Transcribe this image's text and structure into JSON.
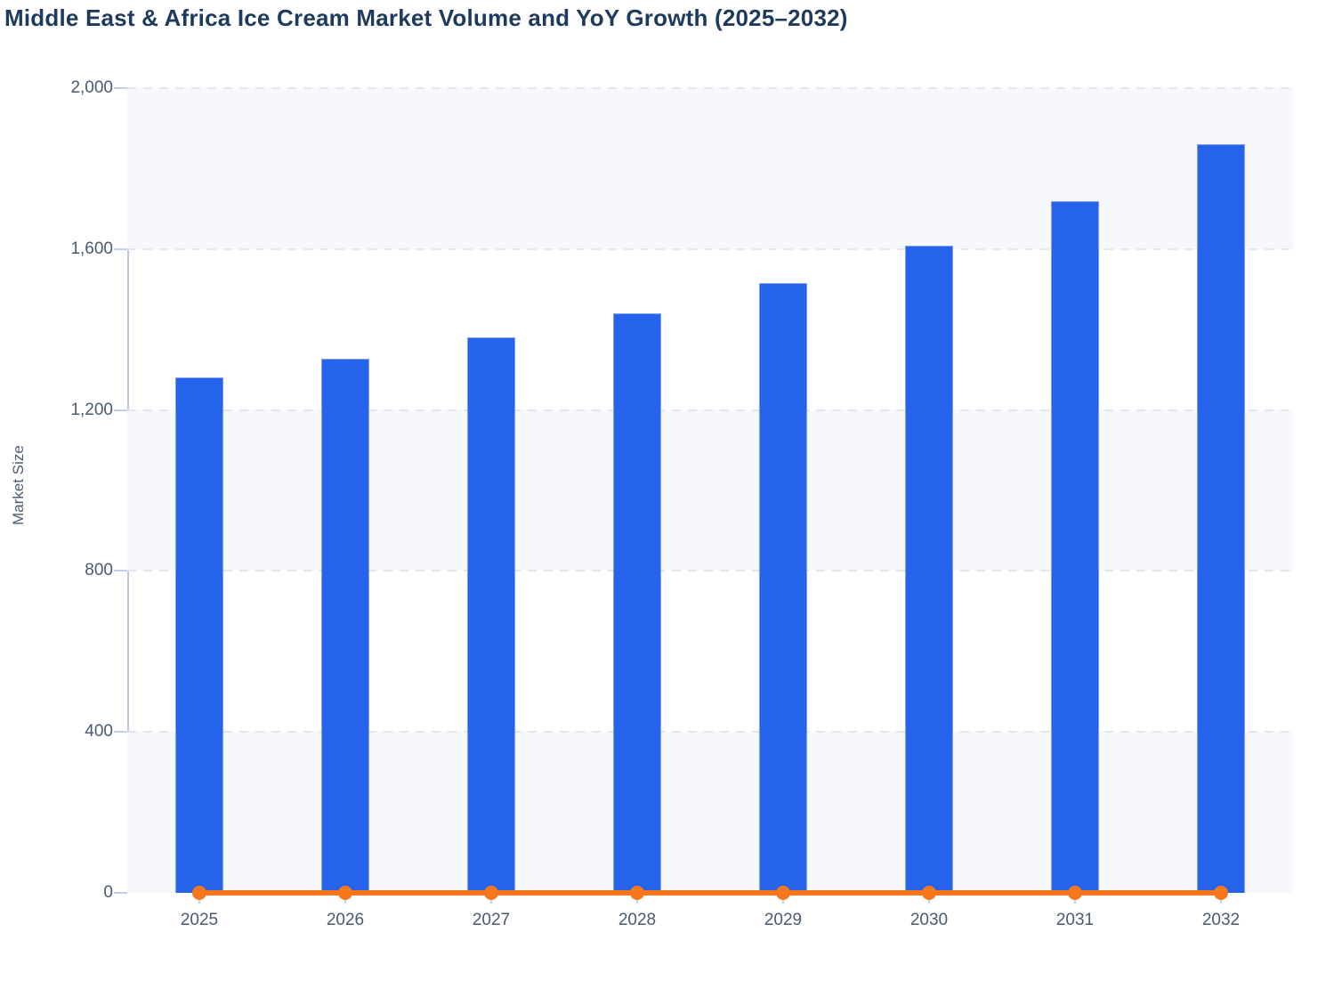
{
  "title": "Middle East & Africa Ice Cream Market Volume and YoY Growth (2025–2032)",
  "y_axis": {
    "label": "Market Size",
    "ticks": [
      "0",
      "400",
      "800",
      "1,200",
      "1,600",
      "2,000"
    ]
  },
  "x_axis": {
    "categories": [
      "2025",
      "2026",
      "2027",
      "2028",
      "2029",
      "2030",
      "2031",
      "2032"
    ]
  },
  "colors": {
    "bar_fill": "#2563eb",
    "bar_border": "#7f9ef0",
    "line": "#f8761c",
    "title_text": "#1e3a5e",
    "axis_text": "#4a5a72",
    "gridline": "#e3e6ee",
    "plot_band": "#f6f8fb",
    "axis_line": "#bcc9e4"
  },
  "chart_data": {
    "type": "bar",
    "title": "Middle East & Africa Ice Cream Market Volume and YoY Growth (2025–2032)",
    "categories": [
      "2025",
      "2026",
      "2027",
      "2028",
      "2029",
      "2030",
      "2031",
      "2032"
    ],
    "series": [
      {
        "name": "Market Size",
        "type": "bar",
        "color": "#2563eb",
        "values": [
          1280,
          1327,
          1380,
          1441,
          1515,
          1609,
          1719,
          1861
        ]
      },
      {
        "name": "YoY Growth",
        "type": "line",
        "color": "#f8761c",
        "values": [
          0,
          0,
          0,
          0,
          0,
          0,
          0,
          0
        ]
      }
    ],
    "xlabel": "",
    "ylabel": "Market Size",
    "ylim": [
      0,
      2000
    ],
    "yticks": [
      0,
      400,
      800,
      1200,
      1600,
      2000
    ],
    "grid": "horizontal dashed",
    "legend": "none",
    "plot_background": "alternating horizontal bands"
  }
}
